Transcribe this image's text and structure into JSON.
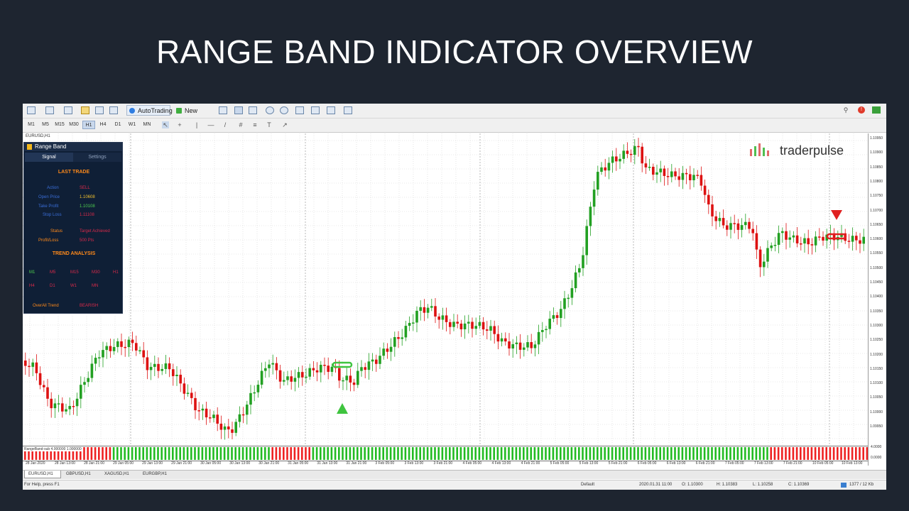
{
  "slide": {
    "title": "RANGE BAND INDICATOR OVERVIEW"
  },
  "toolbar": {
    "autotrading_label": "AutoTrading",
    "new_order_label": "New Order",
    "timeframes": [
      "M1",
      "M5",
      "M15",
      "M30",
      "H1",
      "H4",
      "D1",
      "W1",
      "MN"
    ],
    "active_timeframe": "H1"
  },
  "chart": {
    "window_label": "EURUSD,H1",
    "price_levels": [
      "1.10950",
      "1.10900",
      "1.10850",
      "1.10800",
      "1.10750",
      "1.10700",
      "1.10650",
      "1.10600",
      "1.10550",
      "1.10500",
      "1.10450",
      "1.10400",
      "1.10350",
      "1.10300",
      "1.10250",
      "1.10200",
      "1.10150",
      "1.10100",
      "1.10050",
      "1.10000",
      "1.09950"
    ],
    "time_labels": [
      "28 Jan 2020",
      "28 Jan 13:00",
      "28 Jan 21:00",
      "29 Jan 05:00",
      "29 Jan 13:00",
      "29 Jan 21:00",
      "30 Jan 05:00",
      "30 Jan 13:00",
      "30 Jan 21:00",
      "31 Jan 05:00",
      "31 Jan 13:00",
      "31 Jan 21:00",
      "3 Feb 05:00",
      "3 Feb 13:00",
      "3 Feb 21:00",
      "4 Feb 05:00",
      "4 Feb 13:00",
      "4 Feb 21:00",
      "5 Feb 05:00",
      "5 Feb 13:00",
      "5 Feb 21:00",
      "6 Feb 05:00",
      "6 Feb 13:00",
      "6 Feb 21:00",
      "7 Feb 05:00",
      "7 Feb 13:00",
      "7 Feb 21:00",
      "10 Feb 05:00",
      "10 Feb 13:00"
    ],
    "watermark": "traderpulse",
    "colors": {
      "bull": "#22a022",
      "bear": "#dd1111",
      "grid": "#d6d6d6"
    }
  },
  "indicator": {
    "label": "RangeBand-sub 4.000000 1.000000",
    "scale_top": "4.0000",
    "scale_bottom": "0.0000"
  },
  "panel": {
    "title": "Range Band",
    "tabs": {
      "signal": "Signal",
      "settings": "Settings"
    },
    "last_trade_title": "LAST TRADE",
    "rows": [
      {
        "label": "Action",
        "value": "SELL",
        "color": "#d92a4a"
      },
      {
        "label": "Open Price",
        "value": "1.10608",
        "color": "#f2c12e"
      },
      {
        "label": "Take Profit",
        "value": "1.10108",
        "color": "#4fd14f"
      },
      {
        "label": "Stop Loss",
        "value": "1.11108",
        "color": "#d92a4a"
      }
    ],
    "status_label": "Status",
    "status_value": "Target Achieved",
    "pl_label": "Profit/Loss",
    "pl_value": "500 Pts",
    "trend_title": "TREND ANALYSIS",
    "trend_row1": [
      "M1",
      "M5",
      "M15",
      "M30",
      "H1"
    ],
    "trend_row2": [
      "H4",
      "D1",
      "W1",
      "MN"
    ],
    "overall_label": "OverAll Trend",
    "overall_value": "BEARISH"
  },
  "tabs": [
    "EURUSD,H1",
    "GBPUSD,H1",
    "XAGUSD,H1",
    "EURGBP,H1"
  ],
  "status": {
    "help": "For Help, press F1",
    "profile": "Default",
    "datetime": "2020.01.31 11:00",
    "open": "O: 1.10300",
    "high": "H: 1.10383",
    "low": "L: 1.10258",
    "close": "C: 1.10369",
    "traffic": "1377 / 12 Kb"
  }
}
